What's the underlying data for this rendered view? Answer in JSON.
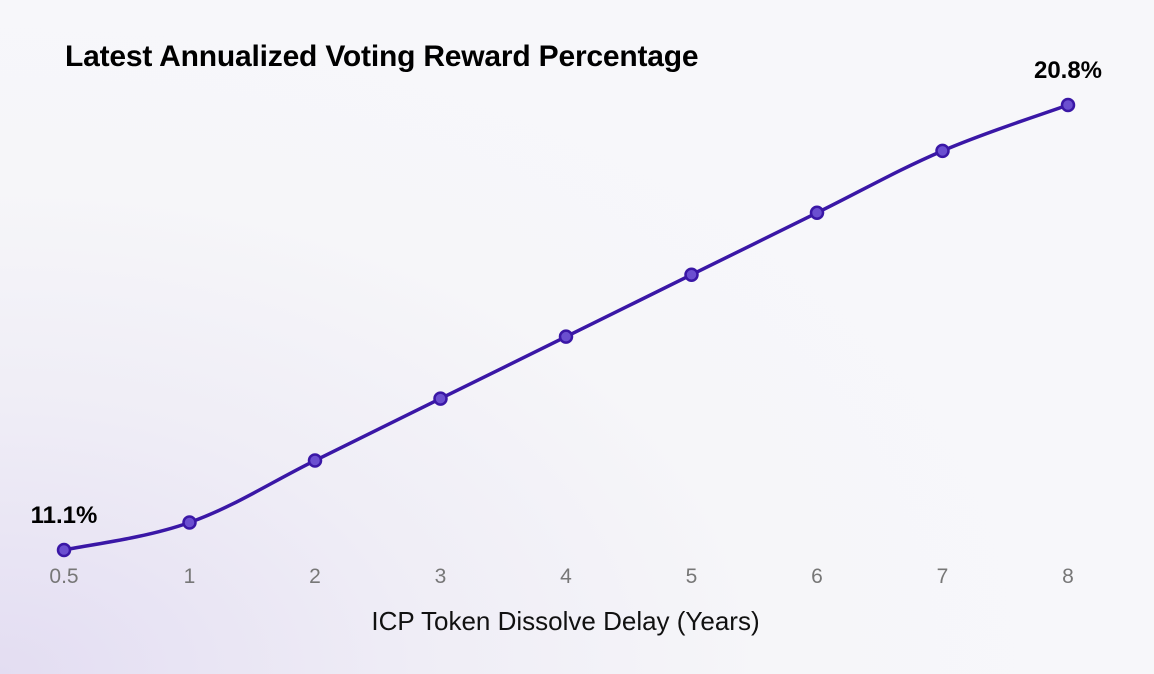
{
  "chart_data": {
    "type": "line",
    "title": "Latest Annualized Voting Reward Percentage",
    "xlabel": "ICP Token Dissolve Delay (Years)",
    "ylabel": "",
    "x": [
      "0.5",
      "1",
      "2",
      "3",
      "4",
      "5",
      "6",
      "7",
      "8"
    ],
    "x_values": [
      0.5,
      1,
      2,
      3,
      4,
      5,
      6,
      7,
      8
    ],
    "series": [
      {
        "values": [
          11.1,
          11.7,
          13.05,
          14.4,
          15.75,
          17.1,
          18.45,
          19.8,
          20.8
        ],
        "color": "#3a17a6"
      }
    ],
    "annotations": [
      {
        "index": 0,
        "text": "11.1%"
      },
      {
        "index": 8,
        "text": "20.8%"
      }
    ],
    "ylim": [
      11.1,
      20.8
    ],
    "grid": false,
    "legend": "none"
  }
}
